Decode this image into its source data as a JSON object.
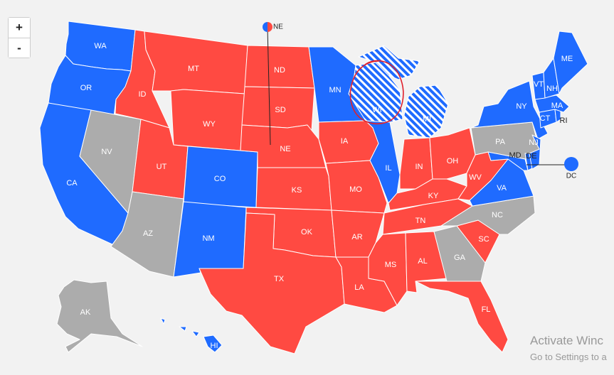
{
  "colors": {
    "dem": "#1f6bff",
    "rep": "#ff4a42",
    "tossup": "#acacac",
    "background": "#f2f2f2",
    "border": "#ffffff"
  },
  "zoom": {
    "in_label": "+",
    "out_label": "-"
  },
  "states": {
    "WA": {
      "label": "WA",
      "party": "dem"
    },
    "OR": {
      "label": "OR",
      "party": "dem"
    },
    "CA": {
      "label": "CA",
      "party": "dem"
    },
    "NV": {
      "label": "NV",
      "party": "tossup"
    },
    "ID": {
      "label": "ID",
      "party": "rep"
    },
    "MT": {
      "label": "MT",
      "party": "rep"
    },
    "WY": {
      "label": "WY",
      "party": "rep"
    },
    "UT": {
      "label": "UT",
      "party": "rep"
    },
    "AZ": {
      "label": "AZ",
      "party": "tossup"
    },
    "CO": {
      "label": "CO",
      "party": "dem"
    },
    "NM": {
      "label": "NM",
      "party": "dem"
    },
    "ND": {
      "label": "ND",
      "party": "rep"
    },
    "SD": {
      "label": "SD",
      "party": "rep"
    },
    "NE": {
      "label": "NE",
      "party": "rep"
    },
    "KS": {
      "label": "KS",
      "party": "rep"
    },
    "OK": {
      "label": "OK",
      "party": "rep"
    },
    "TX": {
      "label": "TX",
      "party": "rep"
    },
    "MN": {
      "label": "MN",
      "party": "dem"
    },
    "IA": {
      "label": "IA",
      "party": "rep"
    },
    "MO": {
      "label": "MO",
      "party": "rep"
    },
    "AR": {
      "label": "AR",
      "party": "rep"
    },
    "LA": {
      "label": "LA",
      "party": "rep"
    },
    "WI": {
      "label": "WI",
      "party": "dem-lean"
    },
    "IL": {
      "label": "IL",
      "party": "dem"
    },
    "MI": {
      "label": "MI",
      "party": "dem-lean"
    },
    "IN": {
      "label": "IN",
      "party": "rep"
    },
    "OH": {
      "label": "OH",
      "party": "rep"
    },
    "KY": {
      "label": "KY",
      "party": "rep"
    },
    "TN": {
      "label": "TN",
      "party": "rep"
    },
    "MS": {
      "label": "MS",
      "party": "rep"
    },
    "AL": {
      "label": "AL",
      "party": "rep"
    },
    "GA": {
      "label": "GA",
      "party": "tossup"
    },
    "FL": {
      "label": "FL",
      "party": "rep"
    },
    "SC": {
      "label": "SC",
      "party": "rep"
    },
    "NC": {
      "label": "NC",
      "party": "tossup"
    },
    "VA": {
      "label": "VA",
      "party": "dem"
    },
    "WV": {
      "label": "WV",
      "party": "rep"
    },
    "PA": {
      "label": "PA",
      "party": "tossup"
    },
    "NY": {
      "label": "NY",
      "party": "dem"
    },
    "VT": {
      "label": "VT",
      "party": "dem"
    },
    "NH": {
      "label": "NH",
      "party": "dem"
    },
    "ME": {
      "label": "ME",
      "party": "dem"
    },
    "MA": {
      "label": "MA",
      "party": "dem"
    },
    "CT": {
      "label": "CT",
      "party": "dem"
    },
    "RI": {
      "label": "RI",
      "party": "dem"
    },
    "NJ": {
      "label": "NJ",
      "party": "dem"
    },
    "DE": {
      "label": "DE",
      "party": "dem"
    },
    "MD": {
      "label": "MD",
      "party": "dem"
    },
    "AK": {
      "label": "AK",
      "party": "tossup"
    },
    "HI": {
      "label": "HI",
      "party": "dem"
    }
  },
  "callouts": {
    "ne_district": {
      "label": "NE",
      "party": "split"
    },
    "dc": {
      "label": "DC",
      "party": "dem"
    }
  },
  "annotation": {
    "shape": "hand-drawn circle",
    "color": "#e0202b",
    "target": "WI"
  },
  "watermark": {
    "line1": "Activate Winc",
    "line2": "Go to Settings to a"
  }
}
